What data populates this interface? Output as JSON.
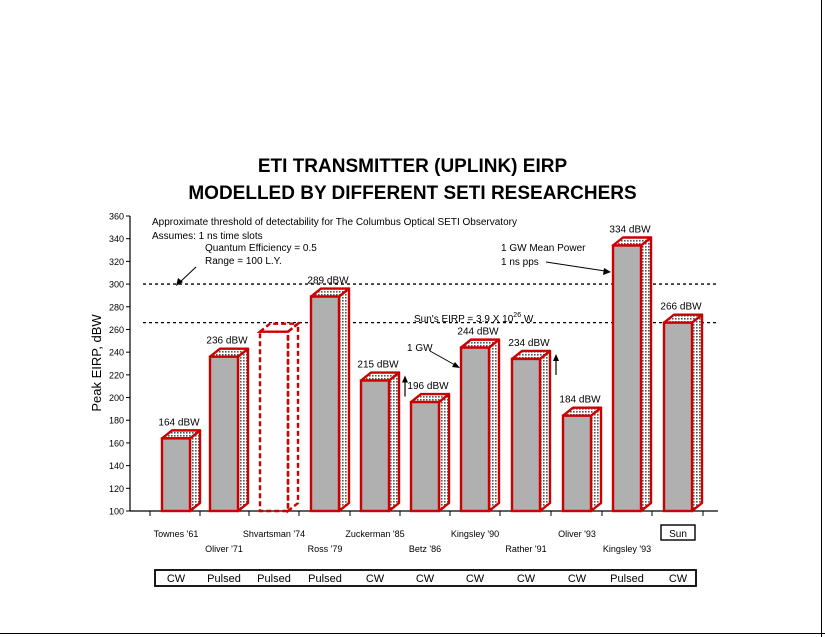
{
  "title": {
    "line1": "ETI TRANSMITTER (UPLINK) EIRP",
    "line2": "MODELLED BY DIFFERENT SETI RESEARCHERS"
  },
  "notes": {
    "threshold_line1": "Approximate threshold of detectability for The Columbus Optical SETI Observatory",
    "assumes": "Assumes: 1 ns time slots",
    "quantum_efficiency": "Quantum Efficiency = 0.5",
    "range": "Range = 100 L.Y.",
    "suns_eirp_prefix": "Sun's EIRP = 3.9 X 10",
    "suns_eirp_exp": "26",
    "suns_eirp_unit": " W",
    "one_gw": "1 GW",
    "gw_mean_power": "1 GW Mean Power",
    "ns_pps": "1 ns pps"
  },
  "chart_data": {
    "type": "bar",
    "ylabel": "Peak EIRP, dBW",
    "xlabel": "",
    "ylim": [
      100,
      360
    ],
    "yticks": [
      100,
      120,
      140,
      160,
      180,
      200,
      220,
      240,
      260,
      280,
      300,
      320,
      340,
      360
    ],
    "grid": false,
    "reference_lines": [
      {
        "label": "Approximate threshold of detectability",
        "value": 300,
        "style": "dotted"
      },
      {
        "label": "Sun's EIRP",
        "value": 266,
        "style": "dotted"
      }
    ],
    "categories": [
      "Townes '61",
      "Oliver '71",
      "Shvartsman '74",
      "Ross '79",
      "Zuckerman '85",
      "Betz '86",
      "Kingsley '90",
      "Rather '91",
      "Oliver '93",
      "Kingsley '93",
      "Sun"
    ],
    "values": [
      164,
      236,
      258,
      289,
      215,
      196,
      244,
      234,
      184,
      334,
      266
    ],
    "value_labels": [
      "164 dBW",
      "236 dBW",
      "",
      "289 dBW",
      "215 dBW",
      "196 dBW",
      "244 dBW",
      "234 dBW",
      "184 dBW",
      "334 dBW",
      "266 dBW"
    ],
    "modes": [
      "CW",
      "Pulsed",
      "Pulsed",
      "Pulsed",
      "CW",
      "CW",
      "CW",
      "CW",
      "CW",
      "Pulsed",
      "CW"
    ],
    "bar_styles": [
      "solid",
      "solid",
      "dashed-outline",
      "solid",
      "solid",
      "solid",
      "solid",
      "solid",
      "solid",
      "solid",
      "solid"
    ],
    "upward_arrows": [
      "Zuckerman '85",
      "Rather '91"
    ],
    "colors": {
      "bar_front": "#b0b0b0",
      "bar_edge": "#cc0000",
      "text": "#000000"
    }
  }
}
